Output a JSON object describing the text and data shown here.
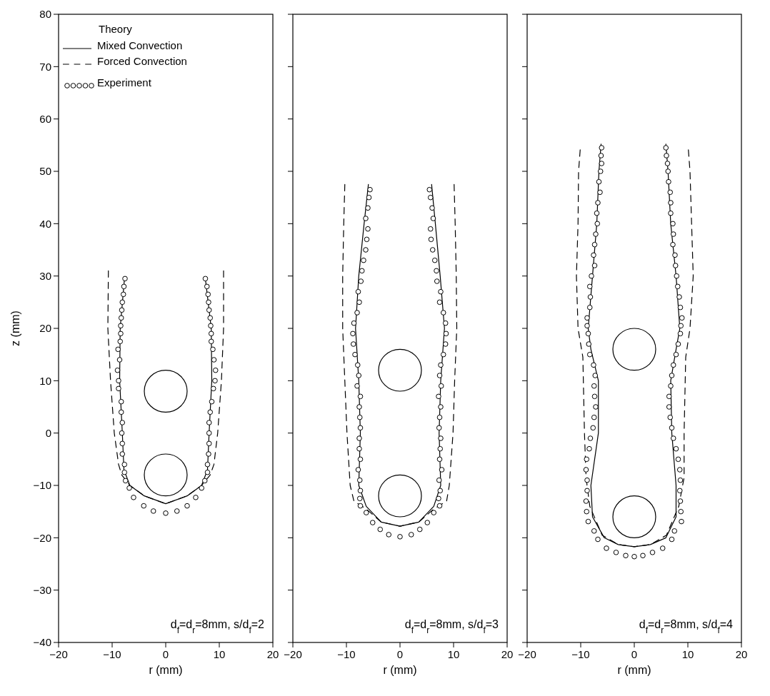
{
  "chart_data": [
    {
      "type": "line",
      "xlabel": "r (mm)",
      "ylabel": "z (mm)",
      "legend_title": "Theory",
      "legend": "top left",
      "xlim": [
        -20,
        20
      ],
      "xticks": [
        -20,
        -10,
        0,
        10,
        20
      ],
      "ylim": [
        -40,
        80
      ],
      "yticks": [
        -40,
        -30,
        -20,
        -10,
        0,
        10,
        20,
        30,
        40,
        50,
        60,
        70,
        80
      ],
      "annotations": [
        "d$_{f}$=d$_{r}$=8mm,  s/d$_{f}$=2"
      ],
      "series": [
        {
          "type": "line",
          "name": "Mixed Convection",
          "color": "#000000",
          "line_style": "solid",
          "x": [
            -7.7,
            -8.5,
            -8.6,
            -8.1,
            -7.8,
            -6.7,
            -4.0,
            0,
            4.0,
            6.7,
            7.8,
            8.1,
            8.6,
            8.5,
            7.4
          ],
          "values": [
            29.5,
            20,
            10,
            0,
            -7,
            -10,
            -12,
            -13.5,
            -12,
            -10,
            -7,
            0,
            10,
            20,
            29.5
          ]
        },
        {
          "type": "line",
          "name": "Forced Convection",
          "color": "#000000",
          "line_style": "dashed",
          "x": [
            -10.7,
            -10.8,
            -10.3,
            -9.6,
            -8.8,
            -8.2,
            -6.7,
            -4.0,
            0,
            4.0,
            6.7,
            8.3,
            9.0,
            9.7,
            10.4,
            10.8,
            10.8
          ],
          "values": [
            31,
            20,
            10,
            0,
            -6,
            -8,
            -10,
            -12,
            -13.5,
            -12,
            -10,
            -8,
            -6,
            0,
            10,
            20,
            31
          ]
        },
        {
          "type": "scatter",
          "name": "Experiment",
          "color": "#000000",
          "marker": "circle",
          "x": [
            -7.6,
            -7.8,
            -7.9,
            -8.1,
            -8.2,
            -8.3,
            -8.4,
            -8.4,
            -8.5,
            -8.9,
            -8.6,
            -9.0,
            -8.8,
            -8.8,
            -8.3,
            -8.3,
            -8.1,
            -8.2,
            -8.1,
            -8.1,
            -7.7,
            -7.7,
            -7.5,
            -6.8,
            -6.0,
            -4.1,
            -2.3,
            0,
            2.1,
            4.0,
            5.6,
            6.7,
            7.3,
            7.8,
            7.8,
            8.0,
            8.1,
            8.1,
            8.1,
            8.3,
            8.6,
            8.9,
            9.2,
            9.3,
            9.0,
            8.8,
            8.5,
            8.5,
            8.4,
            8.3,
            8.1,
            8.0,
            7.9,
            7.7,
            7.4
          ],
          "values": [
            29.5,
            28,
            26.5,
            25,
            23.5,
            22,
            20.5,
            19,
            17.5,
            16,
            14,
            12,
            10,
            8.5,
            6,
            4,
            2,
            0,
            -2,
            -4,
            -6,
            -7.5,
            -9.1,
            -10.5,
            -12.3,
            -13.9,
            -14.9,
            -15.3,
            -14.9,
            -13.9,
            -12.3,
            -10.5,
            -9.1,
            -7.5,
            -6,
            -4,
            -2,
            0,
            2,
            4,
            6,
            8.5,
            10,
            12,
            14,
            16,
            17.5,
            19,
            20.5,
            22,
            23.5,
            25,
            26.5,
            28,
            29.5
          ]
        }
      ]
    },
    {
      "type": "line",
      "xlabel": "r (mm)",
      "tick_labels": "x",
      "legend": false,
      "xlim": [
        -20,
        20
      ],
      "xticks": [
        -20,
        -10,
        0,
        10,
        20
      ],
      "ylim": [
        -40,
        80
      ],
      "yticks": [
        -40,
        -30,
        -20,
        -10,
        0,
        10,
        20,
        30,
        40,
        50,
        60,
        70,
        80
      ],
      "annotations": [
        "d$_{f}$=d$_{r}$=8mm,  s/d$_{f}$=3"
      ],
      "series": [
        {
          "type": "line",
          "color": "#000000",
          "line_style": "solid",
          "x": [
            -5.9,
            -6.7,
            -7.7,
            -8.3,
            -7.7,
            -7.4,
            -7.7,
            -6.3,
            -3.5,
            0,
            3.5,
            6.3,
            7.6,
            7.3,
            7.6,
            8.3,
            7.5,
            6.6,
            5.9
          ],
          "values": [
            47.5,
            40,
            30,
            20,
            10,
            0,
            -10,
            -14,
            -17,
            -17.8,
            -17,
            -14,
            -10,
            0,
            10,
            20,
            30,
            40,
            47.5
          ]
        },
        {
          "type": "line",
          "color": "#000000",
          "line_style": "dashed",
          "x": [
            -10.3,
            -10.5,
            -10.7,
            -10.7,
            -10.3,
            -9.9,
            -9.3,
            -8.6,
            -6.3,
            -3.5,
            0,
            3.5,
            6.3,
            8.7,
            9.2,
            9.9,
            10.2,
            10.6,
            10.5,
            10.3,
            10.1
          ],
          "values": [
            47.5,
            40,
            30,
            20,
            10,
            0,
            -10,
            -13,
            -14.5,
            -17,
            -17.8,
            -17,
            -14.5,
            -13,
            -10,
            0,
            10,
            20,
            30,
            40,
            47.5
          ]
        },
        {
          "type": "scatter",
          "color": "#000000",
          "marker": "circle",
          "x": [
            -5.6,
            -5.8,
            -6.0,
            -6.4,
            -6.0,
            -6.2,
            -6.4,
            -6.8,
            -7.1,
            -7.3,
            -7.8,
            -7.6,
            -8.0,
            -8.6,
            -8.8,
            -8.7,
            -8.4,
            -7.9,
            -7.7,
            -8.0,
            -7.4,
            -7.6,
            -7.5,
            -7.4,
            -7.6,
            -7.6,
            -7.4,
            -7.8,
            -7.5,
            -7.4,
            -7.5,
            -7.4,
            -6.3,
            -5.1,
            -3.7,
            -2.1,
            0,
            2.1,
            3.7,
            5.1,
            6.3,
            7.4,
            7.2,
            7.5,
            7.3,
            7.8,
            7.4,
            7.5,
            7.6,
            7.3,
            7.4,
            7.6,
            7.2,
            7.7,
            7.4,
            7.6,
            8.1,
            8.5,
            8.6,
            8.5,
            8.1,
            7.4,
            7.6,
            6.9,
            6.8,
            6.5,
            6.1,
            5.8,
            5.7,
            6.2,
            6.0,
            5.7,
            5.5
          ],
          "values": [
            46.5,
            45,
            43,
            41,
            39,
            37,
            35,
            33,
            31,
            29,
            27,
            25,
            23,
            21,
            19,
            17,
            15,
            13,
            11,
            9,
            7,
            5,
            3,
            1,
            -1,
            -3,
            -5,
            -7,
            -9,
            -11,
            -12.5,
            -13.9,
            -15.2,
            -17.1,
            -18.4,
            -19.4,
            -19.8,
            -19.4,
            -18.4,
            -17.1,
            -15.2,
            -13.9,
            -12.5,
            -11,
            -9,
            -7,
            -5,
            -3,
            -1,
            1,
            3,
            5,
            7,
            9,
            11,
            13,
            15,
            17,
            19,
            21,
            23,
            25,
            27,
            29,
            31,
            33,
            35,
            37,
            39,
            41,
            43,
            45,
            46.5
          ]
        }
      ]
    },
    {
      "type": "line",
      "xlabel": "r (mm)",
      "tick_labels": "x",
      "legend": false,
      "xlim": [
        -20,
        20
      ],
      "xticks": [
        -20,
        -10,
        0,
        10,
        20
      ],
      "ylim": [
        -40,
        80
      ],
      "yticks": [
        -40,
        -30,
        -20,
        -10,
        0,
        10,
        20,
        30,
        40,
        50,
        60,
        70,
        80
      ],
      "annotations": [
        "d$_{f}$=d$_{r}$=8mm,  s/d$_{f}$=4"
      ],
      "series": [
        {
          "type": "line",
          "color": "#000000",
          "line_style": "solid",
          "x": [
            -6.2,
            -6.6,
            -7.0,
            -7.8,
            -8.6,
            -8.1,
            -6.7,
            -6.7,
            -8.1,
            -7.8,
            -5.6,
            -3,
            0,
            3,
            5.9,
            7.8,
            7.8,
            7.0,
            6.8,
            7.8,
            8.5,
            7.8,
            6.8,
            6.3,
            5.9
          ],
          "values": [
            55.2,
            50,
            40,
            30,
            20,
            16,
            10,
            0,
            -10,
            -16,
            -20,
            -21.3,
            -21.7,
            -21.3,
            -20,
            -16,
            -10,
            0,
            10,
            16,
            20,
            30,
            40,
            50,
            55.2
          ]
        },
        {
          "type": "line",
          "color": "#000000",
          "line_style": "dashed",
          "x": [
            -10.1,
            -10.4,
            -10.5,
            -10.8,
            -10.5,
            -9.6,
            -9.3,
            -9.0,
            -8.3,
            -6,
            -3,
            0,
            3,
            6,
            8.3,
            9.3,
            9.3,
            9.6,
            10.4,
            11.0,
            10.7,
            10.4,
            10.1
          ],
          "values": [
            54.1,
            50,
            40,
            30,
            20,
            14.5,
            0,
            -8.5,
            -14,
            -19.5,
            -21.3,
            -21.7,
            -21.3,
            -19.5,
            -14,
            -8.5,
            0,
            14.5,
            20,
            30,
            40,
            50,
            54.1
          ]
        },
        {
          "type": "scatter",
          "color": "#000000",
          "marker": "circle",
          "x": [
            -6.1,
            -6.2,
            -6.1,
            -6.3,
            -6.6,
            -6.4,
            -6.8,
            -7.0,
            -6.9,
            -7.2,
            -7.4,
            -7.6,
            -7.4,
            -8.0,
            -8.3,
            -8.2,
            -8.3,
            -8.8,
            -8.8,
            -8.6,
            -8.5,
            -8.3,
            -7.6,
            -7.3,
            -7.5,
            -7.4,
            -7.2,
            -7.5,
            -7.7,
            -8.2,
            -8.4,
            -8.9,
            -9.0,
            -8.8,
            -8.8,
            -9.0,
            -8.9,
            -8.6,
            -7.5,
            -6.8,
            -5.2,
            -3.4,
            -1.6,
            0,
            1.6,
            3.4,
            5.3,
            7.0,
            7.5,
            8.8,
            8.7,
            8.6,
            8.5,
            8.6,
            8.5,
            8.2,
            7.8,
            7.3,
            7.0,
            6.7,
            6.5,
            6.5,
            6.8,
            7.0,
            7.3,
            7.8,
            8.2,
            8.6,
            8.7,
            8.9,
            8.6,
            8.4,
            8.1,
            7.9,
            7.7,
            7.6,
            7.2,
            7.3,
            7.2,
            6.8,
            6.8,
            6.7,
            6.4,
            6.3,
            6.2,
            6.0,
            5.9
          ],
          "values": [
            54.5,
            53,
            51.5,
            50,
            48,
            46,
            44,
            42,
            40,
            38,
            36,
            34,
            32,
            30,
            28,
            26,
            24,
            22,
            20.5,
            19,
            17,
            15,
            13,
            11,
            9,
            7,
            5,
            3,
            1,
            -1,
            -3,
            -5,
            -7,
            -9,
            -11,
            -13,
            -15,
            -16.9,
            -18.7,
            -20.3,
            -22.0,
            -22.8,
            -23.4,
            -23.6,
            -23.4,
            -22.8,
            -22.0,
            -20.3,
            -18.7,
            -16.9,
            -15,
            -13,
            -11,
            -9,
            -7,
            -5,
            -3,
            -1,
            1,
            3,
            5,
            7,
            9,
            11,
            13,
            15,
            17,
            19,
            20.5,
            22,
            24,
            26,
            28,
            30,
            32,
            34,
            36,
            38,
            40,
            42,
            44,
            46,
            48,
            50,
            51.5,
            53,
            54.5
          ]
        }
      ]
    }
  ]
}
